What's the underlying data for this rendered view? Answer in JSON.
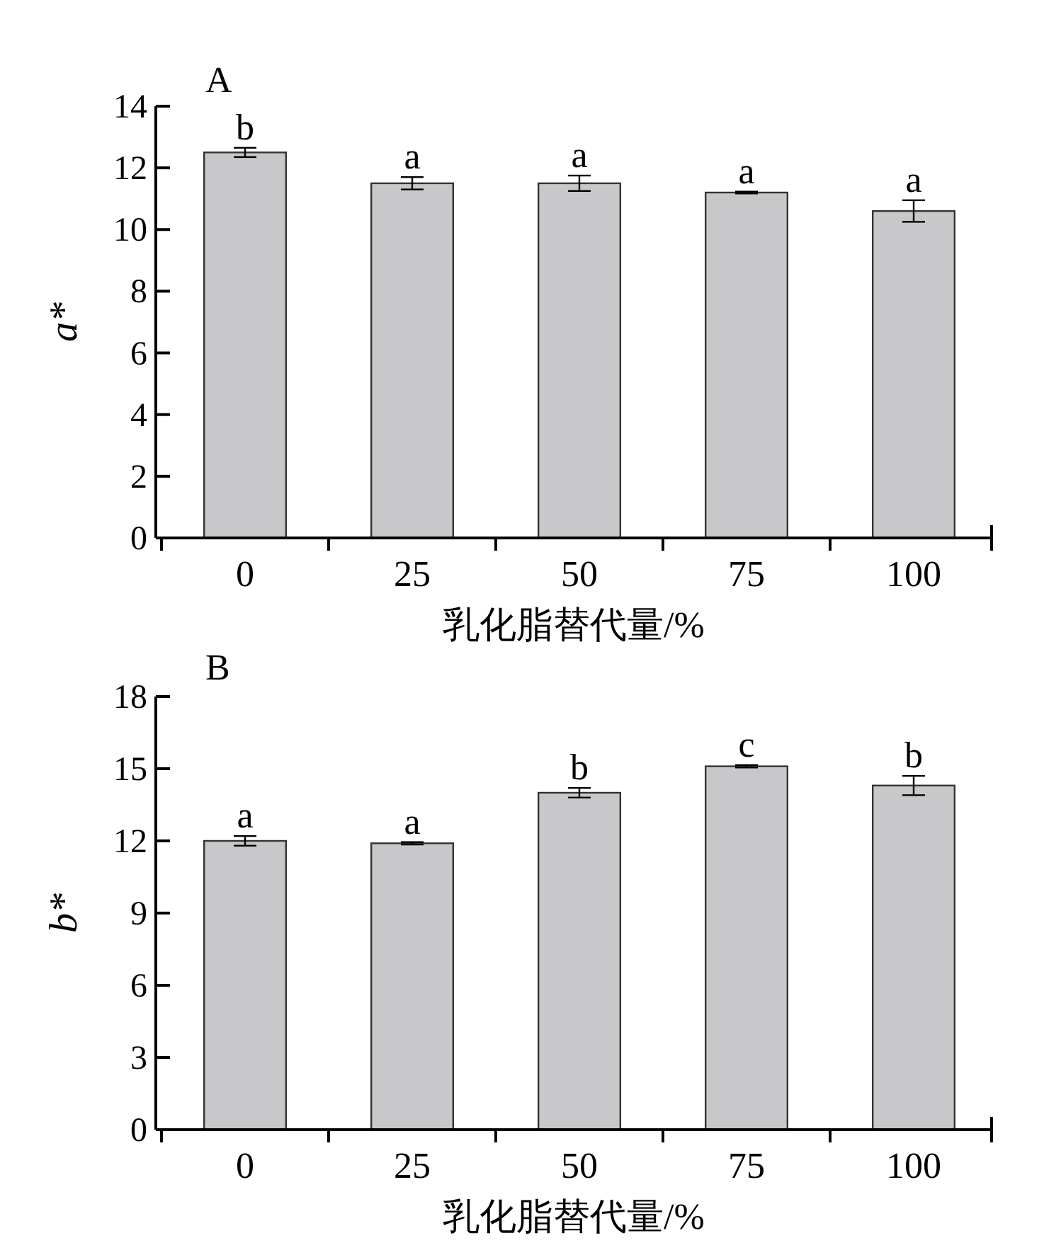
{
  "chart_data": [
    {
      "type": "bar",
      "categories": [
        "0",
        "25",
        "50",
        "75",
        "100"
      ],
      "xlabel": "乳化脂替代量/%",
      "ylabel": "a*",
      "values": [
        12.5,
        11.5,
        11.5,
        11.2,
        10.6
      ],
      "errors": [
        0.15,
        0.2,
        0.25,
        0.03,
        0.35
      ],
      "color": "#c8c8ca",
      "ylim": [
        0,
        14
      ],
      "yticks": [
        0,
        2,
        4,
        6,
        8,
        10,
        12,
        14
      ],
      "annotations": [
        "A",
        {
          "text": "b",
          "x": "0",
          "y": 12.5
        },
        {
          "text": "a",
          "x": "25",
          "y": 11.5
        },
        {
          "text": "a",
          "x": "50",
          "y": 11.5
        },
        {
          "text": "a",
          "x": "75",
          "y": 11.2
        },
        {
          "text": "a",
          "x": "100",
          "y": 10.6
        }
      ]
    },
    {
      "type": "bar",
      "categories": [
        "0",
        "25",
        "50",
        "75",
        "100"
      ],
      "xlabel": "乳化脂替代量/%",
      "ylabel": "b*",
      "values": [
        12.0,
        11.9,
        14.0,
        15.1,
        14.3
      ],
      "errors": [
        0.2,
        0.05,
        0.2,
        0.05,
        0.4
      ],
      "color": "#c8c8ca",
      "ylim": [
        0,
        18
      ],
      "yticks": [
        0,
        3,
        6,
        9,
        12,
        15,
        18
      ],
      "annotations": [
        "B",
        {
          "text": "a",
          "x": "0",
          "y": 12.0
        },
        {
          "text": "a",
          "x": "25",
          "y": 11.9
        },
        {
          "text": "b",
          "x": "50",
          "y": 14.0
        },
        {
          "text": "c",
          "x": "75",
          "y": 15.1
        },
        {
          "text": "b",
          "x": "100",
          "y": 14.3
        }
      ]
    }
  ]
}
